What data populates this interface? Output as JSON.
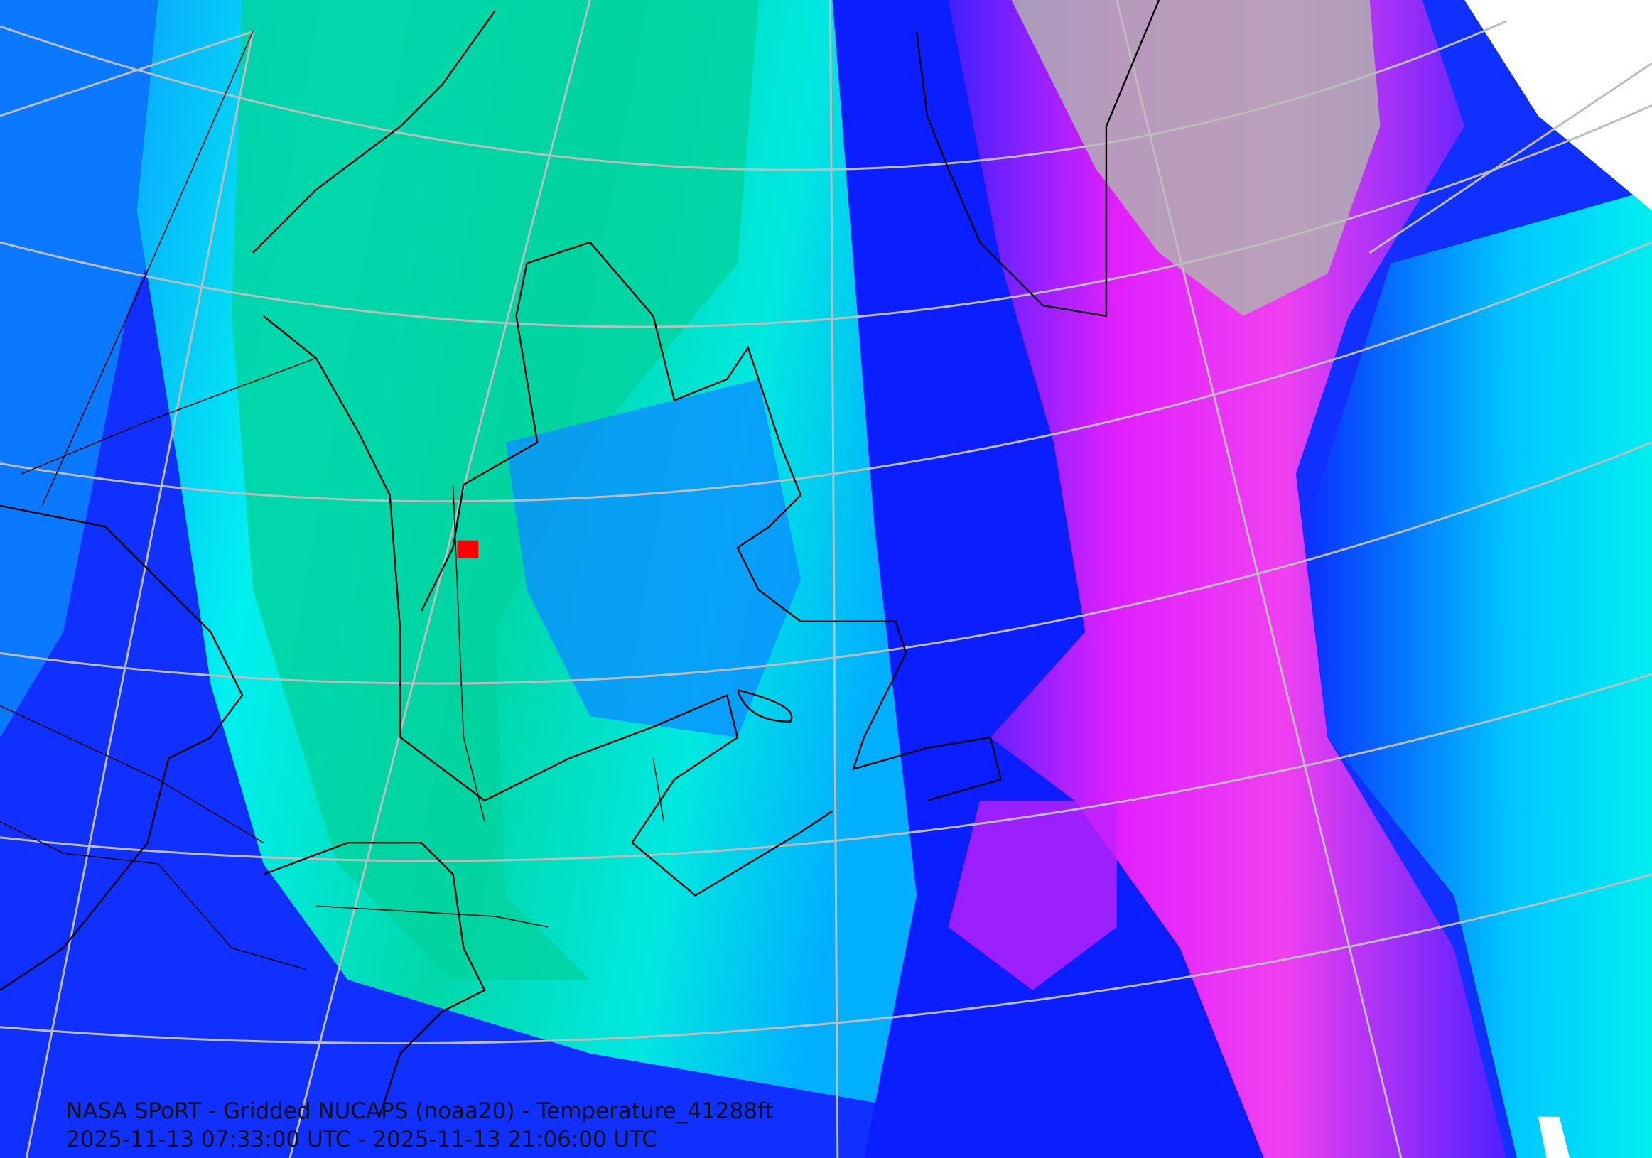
{
  "caption": {
    "title": "NASA SPoRT - Gridded NUCAPS (noaa20) - Temperature_41288ft",
    "time_range": "2025-11-13 07:33:00 UTC - 2025-11-13 21:06:00 UTC"
  }
}
